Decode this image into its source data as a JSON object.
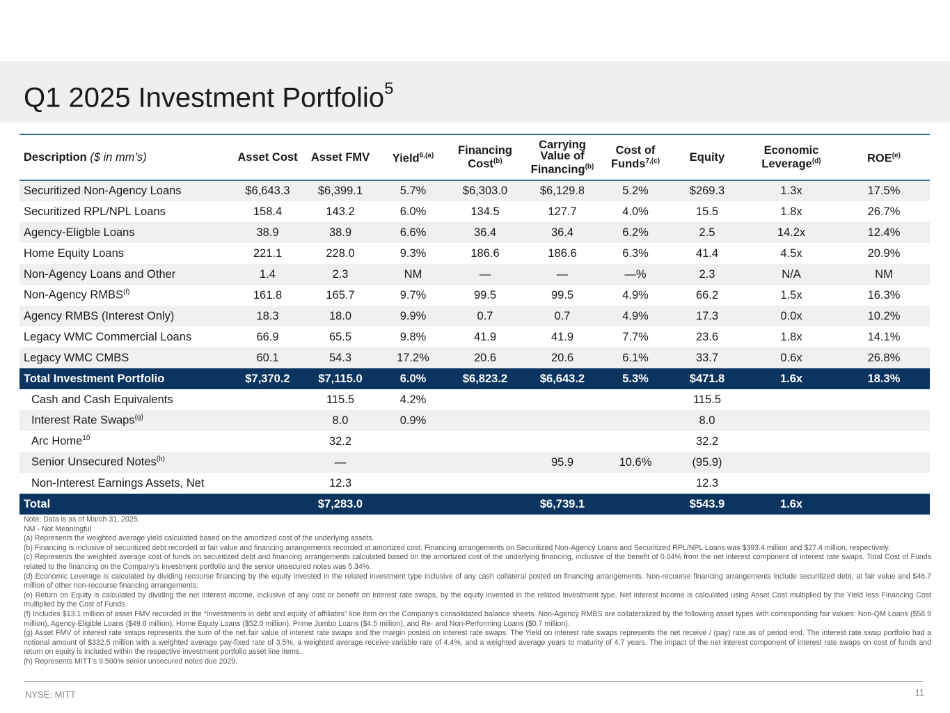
{
  "title": "Q1 2025 Investment Portfolio",
  "title_sup": "5",
  "headers": {
    "description": "Description",
    "description_unit": "($ in mm’s)",
    "asset_cost": "Asset Cost",
    "asset_fmv": "Asset FMV",
    "yield": "Yield",
    "yield_sup": "6,(a)",
    "financing_cost_l1": "Financing",
    "financing_cost_l2": "Cost",
    "financing_cost_sup": "(b)",
    "carrying_l1": "Carrying",
    "carrying_l2": "Value of",
    "carrying_l3": "Financing",
    "carrying_sup": "(b)",
    "cof_l1": "Cost of",
    "cof_l2": "Funds",
    "cof_sup": "7,(c)",
    "equity": "Equity",
    "lev_l1": "Economic",
    "lev_l2": "Leverage",
    "lev_sup": "(d)",
    "roe": "ROE",
    "roe_sup": "(e)"
  },
  "rows": [
    {
      "desc": "Securitized Non-Agency Loans",
      "sup": "",
      "asset_cost": "$6,643.3",
      "asset_fmv": "$6,399.1",
      "yield": "5.7%",
      "financing_cost": "$6,303.0",
      "carrying_value": "$6,129.8",
      "cost_of_funds": "5.2%",
      "equity": "$269.3",
      "leverage": "1.3x",
      "roe": "17.5%"
    },
    {
      "desc": "Securitized RPL/NPL Loans",
      "sup": "",
      "asset_cost": "158.4",
      "asset_fmv": "143.2",
      "yield": "6.0%",
      "financing_cost": "134.5",
      "carrying_value": "127.7",
      "cost_of_funds": "4.0%",
      "equity": "15.5",
      "leverage": "1.8x",
      "roe": "26.7%"
    },
    {
      "desc": "Agency-Eligble Loans",
      "sup": "",
      "asset_cost": "38.9",
      "asset_fmv": "38.9",
      "yield": "6.6%",
      "financing_cost": "36.4",
      "carrying_value": "36.4",
      "cost_of_funds": "6.2%",
      "equity": "2.5",
      "leverage": "14.2x",
      "roe": "12.4%"
    },
    {
      "desc": "Home Equity Loans",
      "sup": "",
      "asset_cost": "221.1",
      "asset_fmv": "228.0",
      "yield": "9.3%",
      "financing_cost": "186.6",
      "carrying_value": "186.6",
      "cost_of_funds": "6.3%",
      "equity": "41.4",
      "leverage": "4.5x",
      "roe": "20.9%"
    },
    {
      "desc": "Non-Agency Loans and Other",
      "sup": "",
      "asset_cost": "1.4",
      "asset_fmv": "2.3",
      "yield": "NM",
      "financing_cost": "—",
      "carrying_value": "—",
      "cost_of_funds": "—%",
      "equity": "2.3",
      "leverage": "N/A",
      "roe": "NM"
    },
    {
      "desc": "Non-Agency RMBS",
      "sup": "(f)",
      "asset_cost": "161.8",
      "asset_fmv": "165.7",
      "yield": "9.7%",
      "financing_cost": "99.5",
      "carrying_value": "99.5",
      "cost_of_funds": "4.9%",
      "equity": "66.2",
      "leverage": "1.5x",
      "roe": "16.3%"
    },
    {
      "desc": "Agency RMBS (Interest Only)",
      "sup": "",
      "asset_cost": "18.3",
      "asset_fmv": "18.0",
      "yield": "9.9%",
      "financing_cost": "0.7",
      "carrying_value": "0.7",
      "cost_of_funds": "4.9%",
      "equity": "17.3",
      "leverage": "0.0x",
      "roe": "10.2%"
    },
    {
      "desc": "Legacy WMC Commercial Loans",
      "sup": "",
      "asset_cost": "66.9",
      "asset_fmv": "65.5",
      "yield": "9.8%",
      "financing_cost": "41.9",
      "carrying_value": "41.9",
      "cost_of_funds": "7.7%",
      "equity": "23.6",
      "leverage": "1.8x",
      "roe": "14.1%"
    },
    {
      "desc": "Legacy WMC CMBS",
      "sup": "",
      "asset_cost": "60.1",
      "asset_fmv": "54.3",
      "yield": "17.2%",
      "financing_cost": "20.6",
      "carrying_value": "20.6",
      "cost_of_funds": "6.1%",
      "equity": "33.7",
      "leverage": "0.6x",
      "roe": "26.8%"
    }
  ],
  "total_portfolio": {
    "desc": "Total Investment Portfolio",
    "asset_cost": "$7,370.2",
    "asset_fmv": "$7,115.0",
    "yield": "6.0%",
    "financing_cost": "$6,823.2",
    "carrying_value": "$6,643.2",
    "cost_of_funds": "5.3%",
    "equity": "$471.8",
    "leverage": "1.6x",
    "roe": "18.3%"
  },
  "other_rows": [
    {
      "desc": "Cash and Cash Equivalents",
      "sup": "",
      "asset_fmv": "115.5",
      "yield": "4.2%",
      "carrying_value": "",
      "cost_of_funds": "",
      "equity": "115.5"
    },
    {
      "desc": "Interest Rate Swaps",
      "sup": "(g)",
      "asset_fmv": "8.0",
      "yield": "0.9%",
      "carrying_value": "",
      "cost_of_funds": "",
      "equity": "8.0"
    },
    {
      "desc": "Arc Home",
      "sup": "10",
      "asset_fmv": "32.2",
      "yield": "",
      "carrying_value": "",
      "cost_of_funds": "",
      "equity": "32.2"
    },
    {
      "desc": "Senior Unsecured Notes",
      "sup": "(h)",
      "asset_fmv": "—",
      "yield": "",
      "carrying_value": "95.9",
      "cost_of_funds": "10.6%",
      "equity": "(95.9)"
    },
    {
      "desc": "Non-Interest Earnings Assets, Net",
      "sup": "",
      "asset_fmv": "12.3",
      "yield": "",
      "carrying_value": "",
      "cost_of_funds": "",
      "equity": "12.3"
    }
  ],
  "grand_total": {
    "desc": "Total",
    "asset_fmv": "$7,283.0",
    "carrying_value": "$6,739.1",
    "equity": "$543.9",
    "leverage": "1.6x"
  },
  "notes": [
    "Note: Data is as of March 31, 2025.",
    "NM - Not Meaningful",
    "(a) Represents the weighted average yield calculated based on the amortized cost of the underlying assets.",
    "(b) Financing is inclusive of securitized debt recorded at fair value and financing arrangements recorded at amortized cost. Financing arrangements on Securitized Non-Agency Loans and Securitized RPL/NPL Loans was $393.4 million and $27.4 million, respectively.",
    "(c) Represents the weighted average cost of funds on securitized debt and financing arrangements calculated based on the amortized cost of the underlying financing, inclusive of the benefit of 0.04% from the net interest component of interest rate swaps. Total Cost of Funds related to the financing on the Company’s investment portfolio and the senior unsecured notes was 5.34%.",
    "(d) Economic Leverage is calculated by dividing recourse financing by the equity invested in the related investment type inclusive of any cash collateral posted on financing arrangements. Non-recourse financing arrangements include securitized debt, at fair value and $46.7 million of other non-recourse financing arrangements.",
    "(e) Return on Equity is calculated by dividing the net interest income, inclusive of any cost or benefit on interest rate swaps, by the equity invested in the related investment type. Net interest income is calculated using Asset Cost multiplied by the Yield less Financing Cost multiplied by the Cost of Funds.",
    "(f) Includes $13.1 million of asset FMV recorded in the “Investments in debt and equity of affiliates” line item on the Company's consolidated balance sheets. Non-Agency RMBS are collateralized by the following asset types with corresponding fair values: Non-QM Loans ($58.9 million), Agency-Eligible Loans ($49.6 million), Home Equity Loans ($52.0 million), Prime Jumbo Loans ($4.5 million), and Re- and Non-Performing Loans ($0.7 million).",
    "(g) Asset FMV of interest rate swaps represents the sum of the net fair value of interest rate swaps and the margin posted on interest rate swaps. The Yield on interest rate swaps represents the net receive / (pay) rate as of period end. The interest rate swap portfolio had a notional amount of $332.5 million with a weighted average pay-fixed rate of 3.5%, a weighted average receive-variable rate of 4.4%, and a weighted average years to maturity of 4.7 years. The impact of the net interest component of interest rate swaps on cost of funds and return on equity is included within the respective investment portfolio asset line items.",
    "(h)  Represents MITT’s 9.500% senior unsecured notes due 2029."
  ],
  "footer": {
    "ticker": "NYSE: MITT",
    "page": "11"
  }
}
